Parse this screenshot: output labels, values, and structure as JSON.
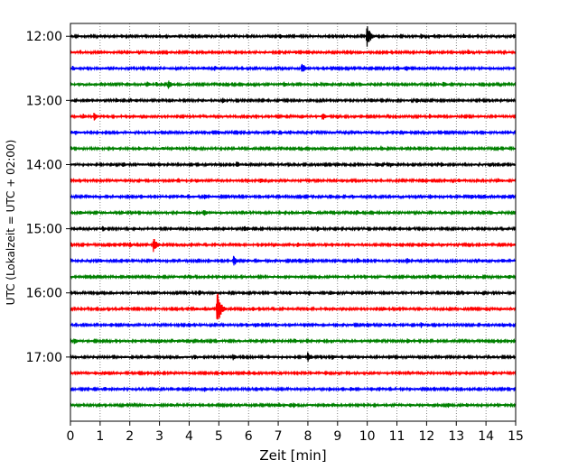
{
  "chart_data": {
    "type": "line",
    "title": "",
    "xlabel": "Zeit  [min]",
    "ylabel": "UTC (Lokalzeit = UTC + 02:00)",
    "xlim": [
      0,
      15
    ],
    "ylim_time": [
      "11:48",
      "18:00"
    ],
    "x_ticks": [
      "0",
      "1",
      "2",
      "3",
      "4",
      "5",
      "6",
      "7",
      "8",
      "9",
      "10",
      "11",
      "12",
      "13",
      "14",
      "15"
    ],
    "y_ticks": [
      "12:00",
      "13:00",
      "14:00",
      "15:00",
      "16:00",
      "17:00"
    ],
    "grid": "vertical dotted lines at each minute",
    "trace_interval_min": 15,
    "trace_colors": [
      "#000000",
      "#ff0000",
      "#0000ff",
      "#008000"
    ],
    "traces_start": "12:00",
    "traces_end": "17:45",
    "events": [
      {
        "trace": "12:00",
        "minute": 10.0,
        "amplitude": 1.0
      },
      {
        "trace": "12:30",
        "minute": 7.8,
        "amplitude": 0.55
      },
      {
        "trace": "12:45",
        "minute": 3.3,
        "amplitude": 0.45
      },
      {
        "trace": "13:15",
        "minute": 0.8,
        "amplitude": 0.4
      },
      {
        "trace": "13:15",
        "minute": 8.5,
        "amplitude": 0.4
      },
      {
        "trace": "14:00",
        "minute": 5.6,
        "amplitude": 0.35
      },
      {
        "trace": "14:45",
        "minute": 4.5,
        "amplitude": 0.35
      },
      {
        "trace": "15:15",
        "minute": 2.8,
        "amplitude": 0.75
      },
      {
        "trace": "15:30",
        "minute": 5.5,
        "amplitude": 0.55
      },
      {
        "trace": "16:15",
        "minute": 4.95,
        "amplitude": 1.65
      },
      {
        "trace": "17:00",
        "minute": 8.0,
        "amplitude": 0.5
      }
    ]
  }
}
